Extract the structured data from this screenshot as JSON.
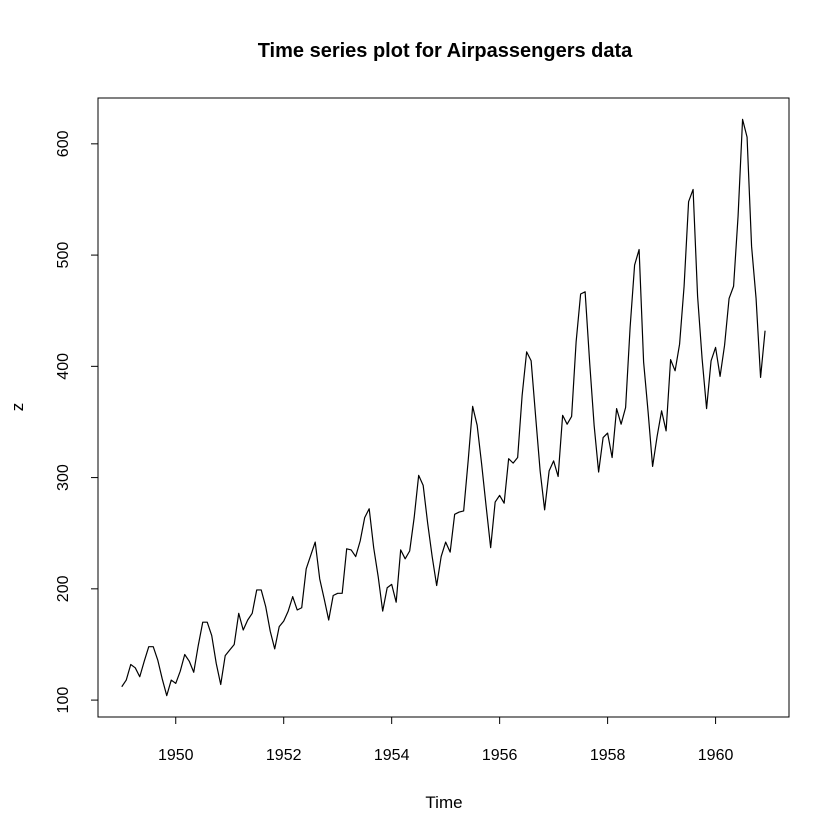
{
  "chart_data": {
    "type": "line",
    "title": "Time series plot for Airpassengers data",
    "xlabel": "Time",
    "ylabel": "z",
    "xlim": [
      1948.56,
      1961.36
    ],
    "ylim": [
      84.8,
      641.2
    ],
    "x_ticks": [
      1950,
      1952,
      1954,
      1956,
      1958,
      1960
    ],
    "y_ticks": [
      100,
      200,
      300,
      400,
      500,
      600
    ],
    "x_tick_labels": [
      "1950",
      "1952",
      "1954",
      "1956",
      "1958",
      "1960"
    ],
    "y_tick_labels": [
      "100",
      "200",
      "300",
      "400",
      "500",
      "600"
    ],
    "start": 1949,
    "frequency": 12,
    "line_color": "#000000",
    "series": [
      {
        "name": "z",
        "values": [
          112,
          118,
          132,
          129,
          121,
          135,
          148,
          148,
          136,
          119,
          104,
          118,
          115,
          126,
          141,
          135,
          125,
          149,
          170,
          170,
          158,
          133,
          114,
          140,
          145,
          150,
          178,
          163,
          172,
          178,
          199,
          199,
          184,
          162,
          146,
          166,
          171,
          180,
          193,
          181,
          183,
          218,
          230,
          242,
          209,
          191,
          172,
          194,
          196,
          196,
          236,
          235,
          229,
          243,
          264,
          272,
          237,
          211,
          180,
          201,
          204,
          188,
          235,
          227,
          234,
          264,
          302,
          293,
          259,
          229,
          203,
          229,
          242,
          233,
          267,
          269,
          270,
          315,
          364,
          347,
          312,
          274,
          237,
          278,
          284,
          277,
          317,
          313,
          318,
          374,
          413,
          405,
          355,
          306,
          271,
          306,
          315,
          301,
          356,
          348,
          355,
          422,
          465,
          467,
          404,
          347,
          305,
          336,
          340,
          318,
          362,
          348,
          363,
          435,
          491,
          505,
          404,
          359,
          310,
          337,
          360,
          342,
          406,
          396,
          420,
          472,
          548,
          559,
          463,
          407,
          362,
          405,
          417,
          391,
          419,
          461,
          472,
          535,
          622,
          606,
          508,
          461,
          390,
          432
        ]
      }
    ]
  }
}
